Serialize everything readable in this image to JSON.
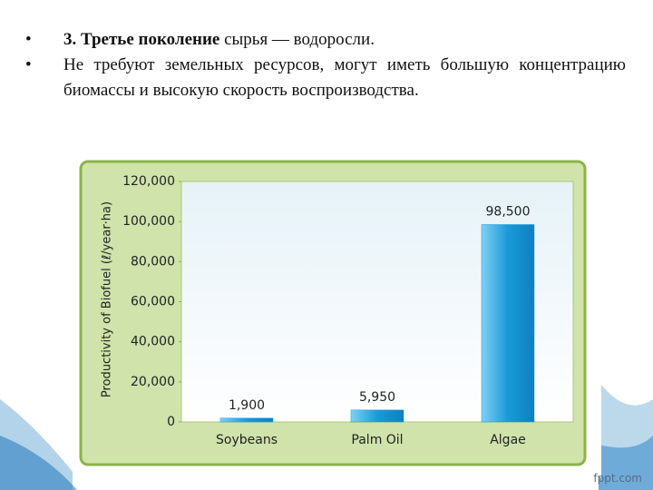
{
  "bullets": [
    {
      "bold": "3. Третье поколение",
      "text": " сырья — водоросли."
    },
    {
      "text": "Не требуют земельных ресурсов, могут иметь большую концентрацию биомассы и высокую скорость воспроизводства."
    }
  ],
  "footer": "fppt.com",
  "chart_data": {
    "type": "bar",
    "ylabel": "Productivity of Biofuel (ℓ/year·ha)",
    "categories": [
      "Soybeans",
      "Palm Oil",
      "Algae"
    ],
    "values": [
      1900,
      5950,
      98500
    ],
    "value_labels": [
      "1,900",
      "5,950",
      "98,500"
    ],
    "color": "#1a9ad8",
    "ylim": [
      0,
      120000
    ],
    "yticks": [
      0,
      {
        "value": 20000,
        "label": "20,000"
      },
      {
        "value": 40000,
        "label": "40,000"
      },
      {
        "value": 60000,
        "label": "60,000"
      },
      {
        "value": 80000,
        "label": "80,000"
      },
      {
        "value": 100000,
        "label": "100,000"
      },
      {
        "value": 120000,
        "label": "120,000"
      }
    ],
    "grid": false
  }
}
